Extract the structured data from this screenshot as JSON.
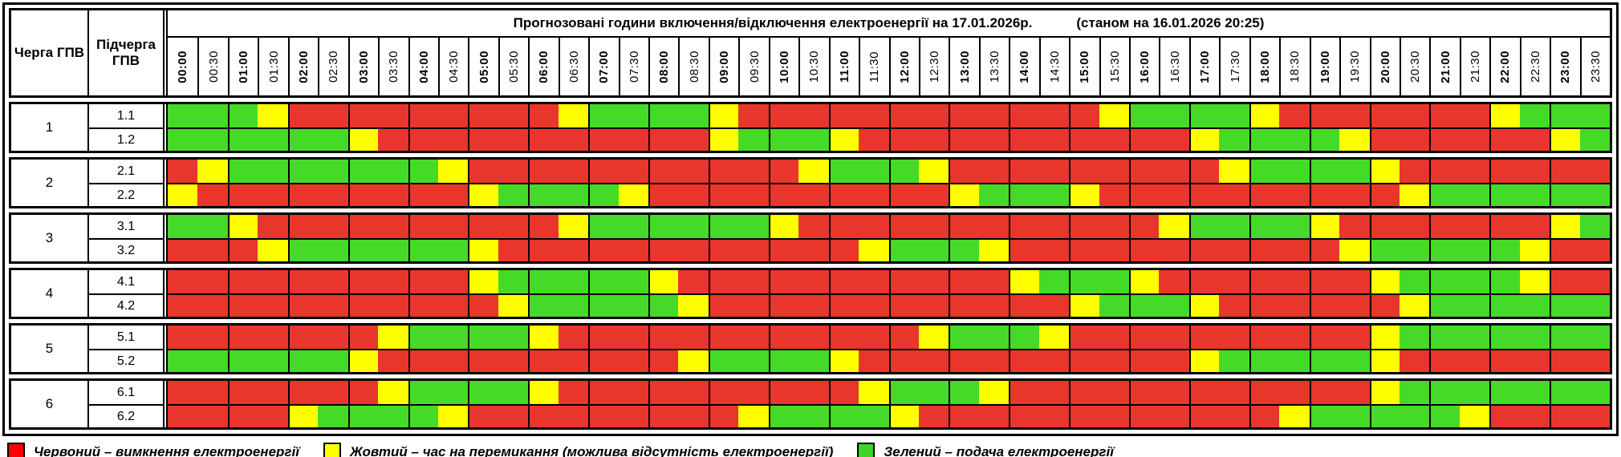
{
  "title": {
    "main": "Прогнозовані години включення/відключення електроенергії на 17.01.2026р.",
    "note": "(станом на 16.01.2026 20:25)"
  },
  "columns": {
    "queue_header": "Черга ГПВ",
    "subqueue_header": "Підчерга ГПВ"
  },
  "time_slots": [
    "00:00",
    "00:30",
    "01:00",
    "01:30",
    "02:00",
    "02:30",
    "03:00",
    "03:30",
    "04:00",
    "04:30",
    "05:00",
    "05:30",
    "06:00",
    "06:30",
    "07:00",
    "07:30",
    "08:00",
    "08:30",
    "09:00",
    "09:30",
    "10:00",
    "10:30",
    "11:00",
    "11:30",
    "12:00",
    "12:30",
    "13:00",
    "13:30",
    "14:00",
    "14:30",
    "15:00",
    "15:30",
    "16:00",
    "16:30",
    "17:00",
    "17:30",
    "18:00",
    "18:30",
    "19:00",
    "19:30",
    "20:00",
    "20:30",
    "21:00",
    "21:30",
    "22:00",
    "22:30",
    "23:00",
    "23:30"
  ],
  "colors": {
    "R": "#e8362d",
    "Y": "#ffff00",
    "G": "#45da28"
  },
  "queues": [
    {
      "queue": "1",
      "rows": [
        {
          "label": "1.1",
          "slots": "GGGYRRRRRRRRRYGGGGYRRRRRRRRRRRRYGGGGYRRRRRRRYGGG"
        },
        {
          "label": "1.2",
          "slots": "GGGGGGYRRRRRRRRRRRYGGGYRRRRRRRRRRRYGGGGYRRRRRRYG"
        }
      ]
    },
    {
      "queue": "2",
      "rows": [
        {
          "label": "2.1",
          "slots": "RYGGGGGGGYRRRRRRRRRRRYGGGYRRRRRRRRRYGGGGYRRRRRRR"
        },
        {
          "label": "2.2",
          "slots": "YRRRRRRRRRYGGGGYRRRRRRRRRRYGGGYRRRRRRRRRRYGGGGGG"
        }
      ]
    },
    {
      "queue": "3",
      "rows": [
        {
          "label": "3.1",
          "slots": "GGYRRRRRRRRRRYGGGGGGYRRRRRRRRRRRRYGGGGYRRRRRRRYG"
        },
        {
          "label": "3.2",
          "slots": "RRRYGGGGGGYRRRRRRRRRRRRYGGGYRRRRRRRRRRRYGGGGGYRR"
        }
      ]
    },
    {
      "queue": "4",
      "rows": [
        {
          "label": "4.1",
          "slots": "RRRRRRRRRRYGGGGGYRRRRRRRRRRRYGGGYRRRRRRRYGGGGYRR"
        },
        {
          "label": "4.2",
          "slots": "RRRRRRRRRRRYGGGGGYRRRRRRRRRRRRYGGGYRRRRRRYGGGGGG"
        }
      ]
    },
    {
      "queue": "5",
      "rows": [
        {
          "label": "5.1",
          "slots": "RRRRRRRYGGGGYRRRRRRRRRRRRYGGGYRRRRRRRRRRYGGGGGGG"
        },
        {
          "label": "5.2",
          "slots": "GGGGGGYRRRRRRRRRRYGGGGYRRRRRRRRRRRYGGGGGYRRRRRRR"
        }
      ]
    },
    {
      "queue": "6",
      "rows": [
        {
          "label": "6.1",
          "slots": "RRRRRRRYGGGGYRRRRRRRRRRYGGGYRRRRRRRRRRRRYGGGGGGG"
        },
        {
          "label": "6.2",
          "slots": "RRRRYGGGGYRRRRRRRRRYGGGGYRRRRRRRRRRRRYGGGGGYRRRR"
        }
      ]
    }
  ],
  "legend": [
    {
      "key": "R",
      "color": "#ff0000",
      "label": "Червоний – вимкнення електроенергії"
    },
    {
      "key": "Y",
      "color": "#ffff00",
      "label": "Жовтий – час на перемикання (можлива відсутність електроенергії)"
    },
    {
      "key": "G",
      "color": "#3fd32c",
      "label": "Зелений – подача електроенергії"
    }
  ],
  "chart_data": {
    "type": "heatmap",
    "title": "Прогнозовані години включення/відключення електроенергії на 17.01.2026р. (станом на 16.01.2026 20:25)",
    "x": [
      "00:00",
      "00:30",
      "01:00",
      "01:30",
      "02:00",
      "02:30",
      "03:00",
      "03:30",
      "04:00",
      "04:30",
      "05:00",
      "05:30",
      "06:00",
      "06:30",
      "07:00",
      "07:30",
      "08:00",
      "08:30",
      "09:00",
      "09:30",
      "10:00",
      "10:30",
      "11:00",
      "11:30",
      "12:00",
      "12:30",
      "13:00",
      "13:30",
      "14:00",
      "14:30",
      "15:00",
      "15:30",
      "16:00",
      "16:30",
      "17:00",
      "17:30",
      "18:00",
      "18:30",
      "19:00",
      "19:30",
      "20:00",
      "20:30",
      "21:00",
      "21:30",
      "22:00",
      "22:30",
      "23:00",
      "23:30"
    ],
    "value_legend": {
      "R": "вимкнення електроенергії",
      "Y": "час на перемикання (можлива відсутність електроенергії)",
      "G": "подача електроенергії"
    },
    "series": [
      {
        "name": "1.1",
        "values": "GGGYRRRRRRRRRYGGGGYRRRRRRRRRRRRYGGGGYRRRRRRRYGGG"
      },
      {
        "name": "1.2",
        "values": "GGGGGGYRRRRRRRRRRRYGGGYRRRRRRRRRRRYGGGGYRRRRRRYG"
      },
      {
        "name": "2.1",
        "values": "RYGGGGGGGYRRRRRRRRRRRYGGGYRRRRRRRRRYGGGGYRRRRRRR"
      },
      {
        "name": "2.2",
        "values": "YRRRRRRRRRYGGGGYRRRRRRRRRRYGGGYRRRRRRRRRRYGGGGGG"
      },
      {
        "name": "3.1",
        "values": "GGYRRRRRRRRRRYGGGGGGYRRRRRRRRRRRRYGGGGYRRRRRRRYG"
      },
      {
        "name": "3.2",
        "values": "RRRYGGGGGGYRRRRRRRRRRRRYGGGYRRRRRRRRRRRYGGGGGYRR"
      },
      {
        "name": "4.1",
        "values": "RRRRRRRRRRYGGGGGYRRRRRRRRRRRYGGGYRRRRRRRYGGGGYRR"
      },
      {
        "name": "4.2",
        "values": "RRRRRRRRRRRYGGGGGYRRRRRRRRRRRRYGGGYRRRRRRYGGGGGG"
      },
      {
        "name": "5.1",
        "values": "RRRRRRRYGGGGYRRRRRRRRRRRRYGGGYRRRRRRRRRRYGGGGGGG"
      },
      {
        "name": "5.2",
        "values": "GGGGGGYRRRRRRRRRRYGGGGYRRRRRRRRRRRYGGGGGYRRRRRRR"
      },
      {
        "name": "6.1",
        "values": "RRRRRRRYGGGGYRRRRRRRRRRYGGGYRRRRRRRRRRRRYGGGGGGG"
      },
      {
        "name": "6.2",
        "values": "RRRRYGGGGYRRRRRRRRRYGGGGYRRRRRRRRRRRRYGGGGGYRRRR"
      }
    ]
  }
}
